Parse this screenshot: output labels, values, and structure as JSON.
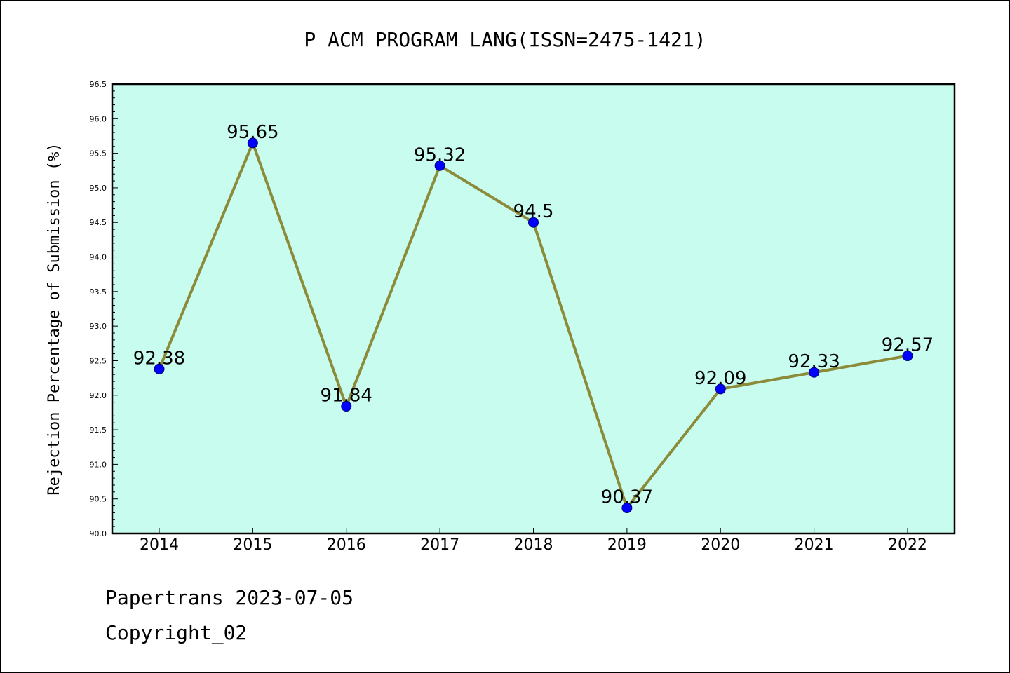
{
  "chart_data": {
    "type": "line",
    "title": "P ACM PROGRAM LANG(ISSN=2475-1421)",
    "xlabel": "",
    "ylabel": "Rejection Percentage of Submission (%)",
    "categories": [
      "2014",
      "2015",
      "2016",
      "2017",
      "2018",
      "2019",
      "2020",
      "2021",
      "2022"
    ],
    "values": [
      92.38,
      95.65,
      91.84,
      95.32,
      94.5,
      90.37,
      92.09,
      92.33,
      92.57
    ],
    "data_labels": [
      "92.38",
      "95.65",
      "91.84",
      "95.32",
      "94.5",
      "90.37",
      "92.09",
      "92.33",
      "92.57"
    ],
    "ylim": [
      90.0,
      96.5
    ],
    "yticks": [
      "90.0",
      "90.5",
      "91.0",
      "91.5",
      "92.0",
      "92.5",
      "93.0",
      "93.5",
      "94.0",
      "94.5",
      "95.0",
      "95.5",
      "96.0",
      "96.5"
    ],
    "grid": false,
    "colors": {
      "plot_background": "#c8fcee",
      "line": "#8b8b3a",
      "marker": "#0000ff"
    }
  },
  "footer": {
    "line1": "Papertrans 2023-07-05",
    "line2": "Copyright_02"
  }
}
